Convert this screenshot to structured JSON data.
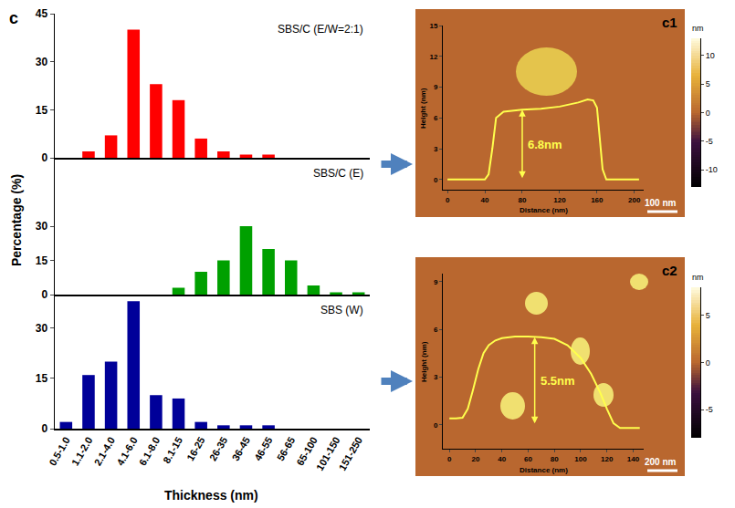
{
  "figure_label": "c",
  "chart_data": [
    {
      "type": "bar",
      "x_label": "Thickness (nm)",
      "y_label": "Percentage (%)",
      "categories": [
        "0.5-1.0",
        "1.1-2.0",
        "2.1-4.0",
        "4.1-6.0",
        "6.1-8.0",
        "8.1-15",
        "16-25",
        "26-35",
        "36-45",
        "46-55",
        "56-65",
        "65-100",
        "101-150",
        "151-250"
      ],
      "grid": false,
      "series": [
        {
          "name": "SBS/C (E/W=2:1)",
          "color": "#ff0000",
          "values": [
            0,
            2,
            7,
            40,
            23,
            18,
            6,
            2,
            1,
            1,
            0,
            0,
            0,
            0
          ],
          "ylim": [
            0,
            45
          ],
          "yticks": [
            0,
            15,
            30,
            45
          ]
        },
        {
          "name": "SBS/C (E)",
          "color": "#00a000",
          "values": [
            0,
            0,
            0,
            0,
            0,
            3,
            10,
            15,
            30,
            20,
            15,
            4,
            1,
            1
          ],
          "ylim": [
            0,
            60
          ],
          "yticks": [
            0,
            15,
            30
          ]
        },
        {
          "name": "SBS (W)",
          "color": "#000099",
          "values": [
            2,
            16,
            20,
            38,
            10,
            9,
            2,
            1,
            1,
            1,
            0,
            0,
            0,
            0
          ],
          "ylim": [
            0,
            40
          ],
          "yticks": [
            0,
            15,
            30
          ]
        }
      ]
    },
    {
      "type": "line",
      "title": "c1",
      "x_label": "Distance (nm)",
      "y_label": "Height (nm)",
      "color": "#ffff4d",
      "grid": false,
      "x": [
        0,
        20,
        40,
        44,
        48,
        52,
        60,
        80,
        100,
        120,
        140,
        150,
        156,
        160,
        163,
        166,
        170,
        180,
        200,
        205
      ],
      "values": [
        0,
        0,
        0,
        0.5,
        3,
        6.0,
        6.6,
        6.8,
        6.9,
        7.1,
        7.5,
        7.8,
        7.7,
        7,
        4,
        1,
        0,
        0,
        0,
        0
      ],
      "xlim": [
        -5,
        210
      ],
      "xticks": [
        0,
        40,
        80,
        120,
        160,
        200
      ],
      "ylim": [
        -1,
        15
      ],
      "yticks": [
        0,
        3,
        6,
        9,
        12,
        15
      ],
      "annotations": [
        {
          "text": "6.8nm",
          "x": 80,
          "y0": 0,
          "y1": 6.8
        }
      ],
      "scale_bar": "100 nm",
      "colorbar": {
        "title": "nm",
        "range": [
          -13,
          13
        ],
        "ticks": [
          10,
          5,
          0,
          -5,
          -10
        ]
      }
    },
    {
      "type": "line",
      "title": "c2",
      "x_label": "Distance (nm)",
      "y_label": "Height (nm)",
      "color": "#ffff4d",
      "grid": false,
      "x": [
        0,
        5,
        10,
        14,
        18,
        22,
        26,
        30,
        35,
        40,
        50,
        60,
        70,
        80,
        90,
        100,
        108,
        115,
        120,
        125,
        130,
        140,
        145
      ],
      "values": [
        0.4,
        0.4,
        0.45,
        1,
        2.2,
        3.5,
        4.5,
        5.0,
        5.3,
        5.45,
        5.55,
        5.55,
        5.5,
        5.4,
        5.0,
        4.2,
        3.2,
        2,
        1,
        0.1,
        -0.2,
        -0.2,
        -0.2
      ],
      "xlim": [
        -5,
        148
      ],
      "xticks": [
        0,
        20,
        40,
        60,
        80,
        100,
        120,
        140
      ],
      "ylim": [
        -1.5,
        9.5
      ],
      "yticks": [
        0,
        3,
        6,
        9
      ],
      "annotations": [
        {
          "text": "5.5nm",
          "x": 65,
          "y0": 0,
          "y1": 5.5
        }
      ],
      "scale_bar": "200 nm",
      "colorbar": {
        "title": "nm",
        "range": [
          -8,
          8
        ],
        "ticks": [
          5,
          0,
          -5
        ]
      }
    }
  ]
}
